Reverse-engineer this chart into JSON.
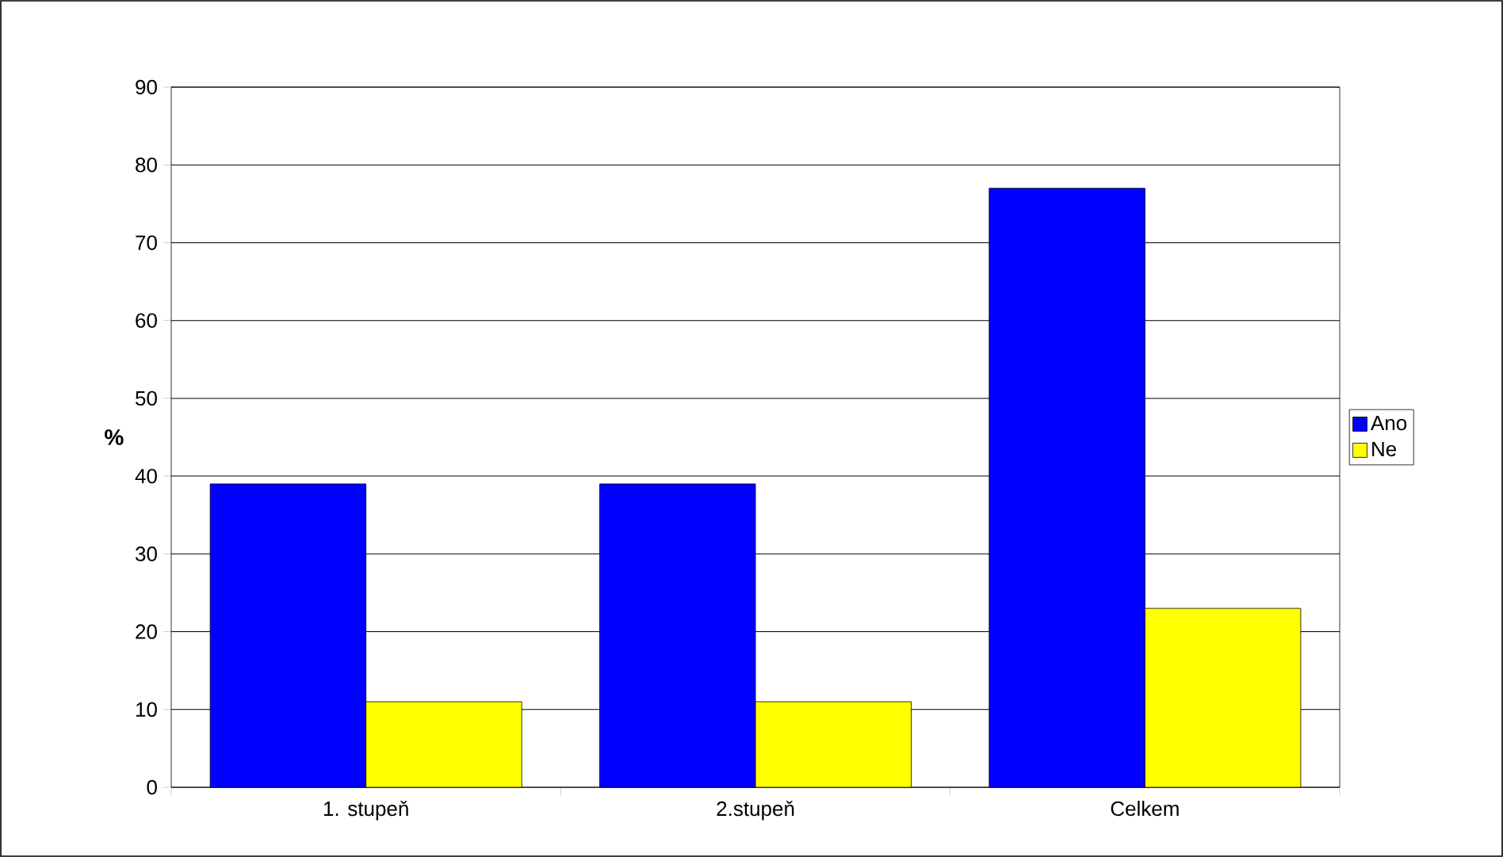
{
  "chart_data": {
    "type": "bar",
    "categories": [
      "1. stupeň",
      "2.stupeň",
      "Celkem"
    ],
    "series": [
      {
        "name": "Ano",
        "color": "#0000ff",
        "values": [
          39,
          39,
          77
        ]
      },
      {
        "name": "Ne",
        "color": "#ffff00",
        "values": [
          11,
          11,
          23
        ]
      }
    ],
    "ylabel": "%",
    "ylim": [
      0,
      90
    ],
    "yticks": [
      0,
      10,
      20,
      30,
      40,
      50,
      60,
      70,
      80,
      90
    ],
    "grid": "y",
    "legend": "right"
  }
}
